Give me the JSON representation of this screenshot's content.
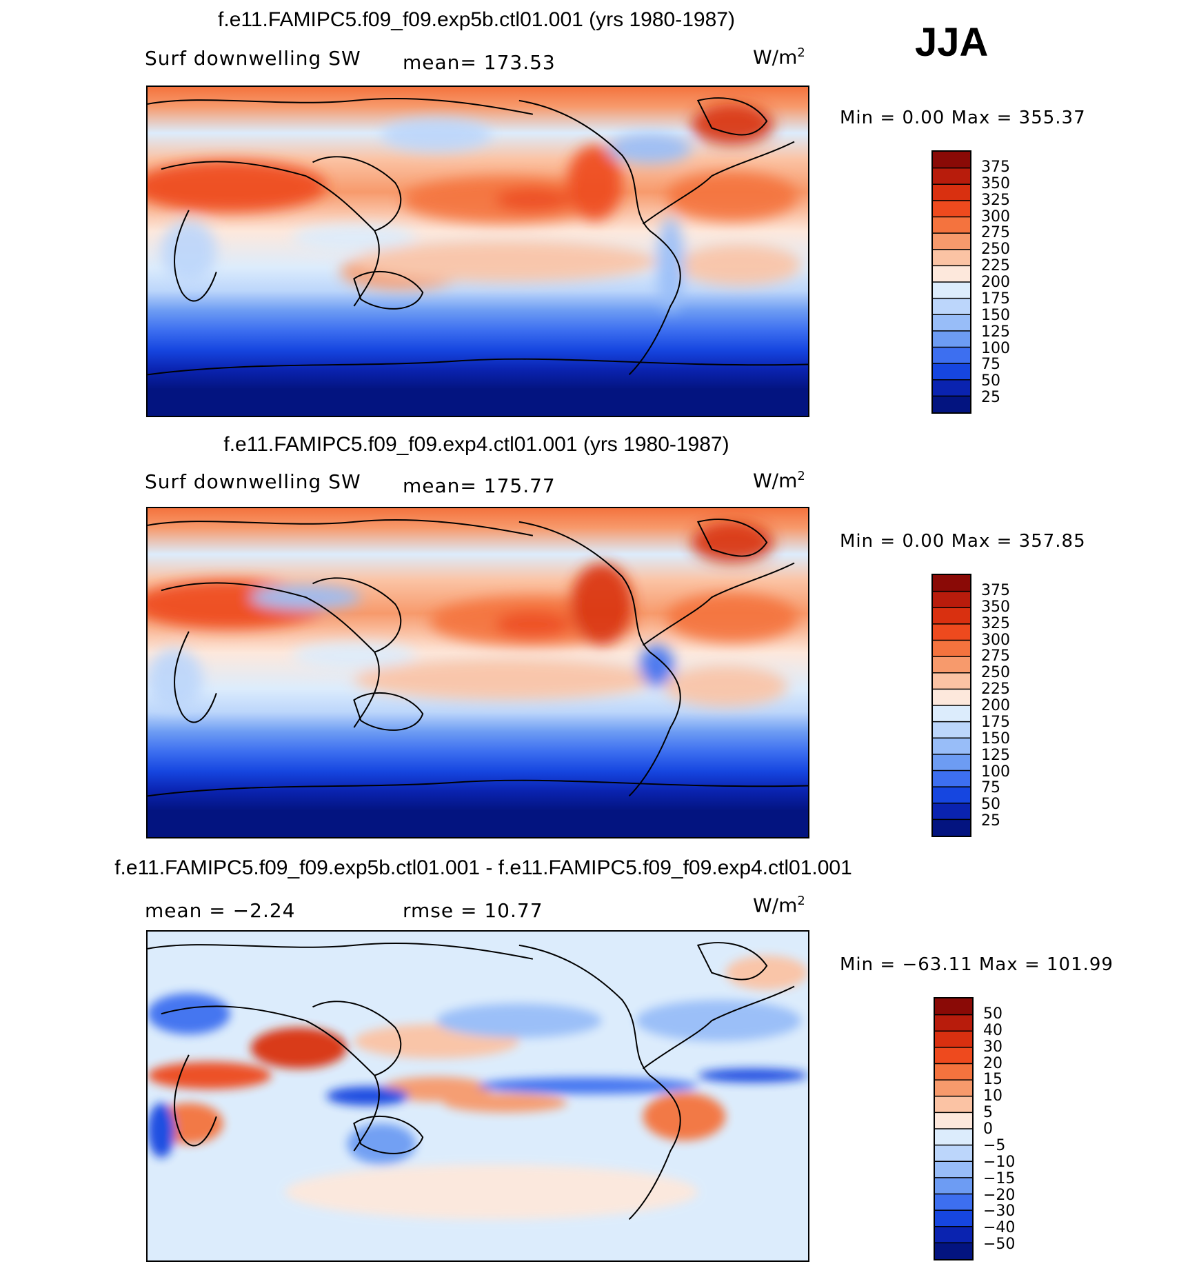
{
  "season": "JJA",
  "panels": [
    {
      "title": "f.e11.FAMIPC5.f09_f09.exp5b.ctl01.001 (yrs 1980-1987)",
      "variable": "Surf  downwelling  SW",
      "stat_text": "mean=  173.53",
      "units_base": "W/m",
      "units_sup": "2",
      "minmax": "Min  =     0.00  Max  =  355.37"
    },
    {
      "title": "f.e11.FAMIPC5.f09_f09.exp4.ctl01.001 (yrs 1980-1987)",
      "variable": "Surf  downwelling  SW",
      "stat_text": "mean=  175.77",
      "units_base": "W/m",
      "units_sup": "2",
      "minmax": "Min  =     0.00  Max  =  357.85"
    },
    {
      "title": "f.e11.FAMIPC5.f09_f09.exp5b.ctl01.001 - f.e11.FAMIPC5.f09_f09.exp4.ctl01.001",
      "variable": "mean  =    −2.24",
      "stat_text": "rmse  =    10.77",
      "units_base": "W/m",
      "units_sup": "2",
      "minmax": "Min  =  −63.11  Max  =  101.99"
    }
  ],
  "colorbars": {
    "abs": {
      "labels": [
        "375",
        "350",
        "325",
        "300",
        "275",
        "250",
        "225",
        "200",
        "175",
        "150",
        "125",
        "100",
        "75",
        "50",
        "25"
      ],
      "colors": [
        "#8a0a06",
        "#b81c0c",
        "#d93010",
        "#ee4a1e",
        "#f4733e",
        "#f79a6c",
        "#fbc3a4",
        "#fde8dc",
        "#dcecfc",
        "#bcd6fb",
        "#98bdf8",
        "#6d9cf3",
        "#3d6ff0",
        "#1646e0",
        "#0a23b0",
        "#031480"
      ]
    },
    "diff": {
      "labels": [
        "50",
        "40",
        "30",
        "20",
        "15",
        "10",
        "5",
        "0",
        "−5",
        "−10",
        "−15",
        "−20",
        "−30",
        "−40",
        "−50"
      ],
      "colors": [
        "#8a0a06",
        "#b81c0c",
        "#d93010",
        "#ee4a1e",
        "#f4733e",
        "#f79a6c",
        "#fbc3a4",
        "#fde8dc",
        "#dcecfc",
        "#bcd6fb",
        "#98bdf8",
        "#6d9cf3",
        "#3d6ff0",
        "#1646e0",
        "#0a23b0",
        "#031480"
      ]
    }
  },
  "chart_data": [
    {
      "type": "heatmap",
      "title": "f.e11.FAMIPC5.f09_f09.exp5b.ctl01.001 (yrs 1980-1987)",
      "subtitle": "Surf  downwelling  SW",
      "mean": 173.53,
      "min": 0.0,
      "max": 355.37,
      "units": "W/m2",
      "levels": [
        25,
        50,
        75,
        100,
        125,
        150,
        175,
        200,
        225,
        250,
        275,
        300,
        325,
        350,
        375
      ]
    },
    {
      "type": "heatmap",
      "title": "f.e11.FAMIPC5.f09_f09.exp4.ctl01.001 (yrs 1980-1987)",
      "subtitle": "Surf  downwelling  SW",
      "mean": 175.77,
      "min": 0.0,
      "max": 357.85,
      "units": "W/m2",
      "levels": [
        25,
        50,
        75,
        100,
        125,
        150,
        175,
        200,
        225,
        250,
        275,
        300,
        325,
        350,
        375
      ]
    },
    {
      "type": "heatmap",
      "title": "f.e11.FAMIPC5.f09_f09.exp5b.ctl01.001 - f.e11.FAMIPC5.f09_f09.exp4.ctl01.001",
      "mean": -2.24,
      "rmse": 10.77,
      "min": -63.11,
      "max": 101.99,
      "units": "W/m2",
      "levels": [
        -50,
        -40,
        -30,
        -20,
        -15,
        -10,
        -5,
        0,
        5,
        10,
        15,
        20,
        30,
        40,
        50
      ]
    }
  ]
}
